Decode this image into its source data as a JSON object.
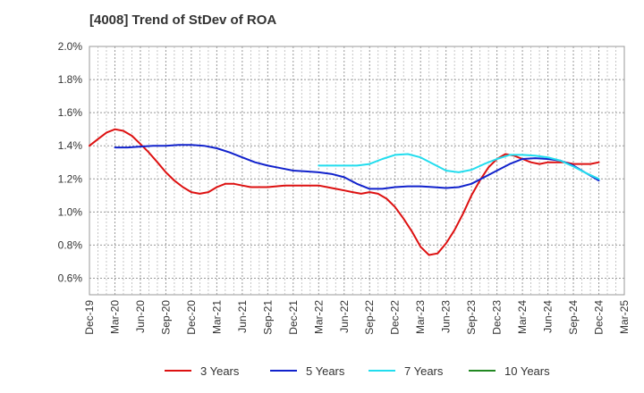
{
  "chart_data": {
    "type": "line",
    "title": "[4008]  Trend of StDev of ROA",
    "xlabel": "",
    "ylabel": "",
    "ylim": [
      0.5,
      2.0
    ],
    "y_ticks": [
      "0.6%",
      "0.8%",
      "1.0%",
      "1.2%",
      "1.4%",
      "1.6%",
      "1.8%",
      "2.0%"
    ],
    "y_tick_values": [
      0.6,
      0.8,
      1.0,
      1.2,
      1.4,
      1.6,
      1.8,
      2.0
    ],
    "categories": [
      "Dec-19",
      "Mar-20",
      "Jun-20",
      "Sep-20",
      "Dec-20",
      "Mar-21",
      "Jun-21",
      "Sep-21",
      "Dec-21",
      "Mar-22",
      "Jun-22",
      "Sep-22",
      "Dec-22",
      "Mar-23",
      "Jun-23",
      "Sep-23",
      "Dec-23",
      "Mar-24",
      "Jun-24",
      "Sep-24",
      "Dec-24",
      "Mar-25"
    ],
    "grid": true,
    "legend_position": "bottom",
    "series": [
      {
        "name": "3 Years",
        "color": "#dd1111",
        "x": [
          0,
          0.33,
          0.67,
          1,
          1.33,
          1.67,
          2,
          2.33,
          2.67,
          3,
          3.33,
          3.67,
          4,
          4.33,
          4.67,
          5,
          5.33,
          5.67,
          6,
          6.33,
          6.67,
          7,
          7.33,
          7.67,
          8,
          8.33,
          8.67,
          9,
          9.33,
          9.67,
          10,
          10.33,
          10.67,
          11,
          11.33,
          11.67,
          12,
          12.33,
          12.67,
          13,
          13.33,
          13.67,
          14,
          14.33,
          14.67,
          15,
          15.33,
          15.67,
          16,
          16.33,
          16.67,
          17,
          17.33,
          17.67,
          18,
          18.33,
          18.67,
          19,
          19.33,
          19.67,
          20
        ],
        "y": [
          1.4,
          1.44,
          1.48,
          1.5,
          1.49,
          1.46,
          1.41,
          1.36,
          1.3,
          1.24,
          1.19,
          1.15,
          1.12,
          1.11,
          1.12,
          1.15,
          1.17,
          1.17,
          1.16,
          1.15,
          1.15,
          1.15,
          1.155,
          1.16,
          1.16,
          1.16,
          1.16,
          1.16,
          1.15,
          1.14,
          1.13,
          1.12,
          1.11,
          1.12,
          1.11,
          1.08,
          1.03,
          0.96,
          0.88,
          0.79,
          0.74,
          0.75,
          0.81,
          0.89,
          0.99,
          1.1,
          1.19,
          1.27,
          1.32,
          1.35,
          1.34,
          1.32,
          1.3,
          1.29,
          1.3,
          1.3,
          1.3,
          1.29,
          1.29,
          1.29,
          1.3
        ]
      },
      {
        "name": "5 Years",
        "color": "#1122cc",
        "x": [
          1,
          1.5,
          2,
          2.5,
          3,
          3.5,
          4,
          4.5,
          5,
          5.5,
          6,
          6.5,
          7,
          7.5,
          8,
          8.5,
          9,
          9.5,
          10,
          10.5,
          11,
          11.5,
          12,
          12.5,
          13,
          13.5,
          14,
          14.5,
          15,
          15.5,
          16,
          16.5,
          17,
          17.5,
          18,
          18.5,
          19,
          19.5,
          20
        ],
        "y": [
          1.39,
          1.39,
          1.395,
          1.4,
          1.4,
          1.405,
          1.405,
          1.4,
          1.385,
          1.36,
          1.33,
          1.3,
          1.28,
          1.265,
          1.25,
          1.245,
          1.24,
          1.23,
          1.21,
          1.17,
          1.14,
          1.14,
          1.15,
          1.155,
          1.155,
          1.15,
          1.145,
          1.15,
          1.17,
          1.21,
          1.25,
          1.29,
          1.32,
          1.325,
          1.32,
          1.31,
          1.28,
          1.235,
          1.19
        ]
      },
      {
        "name": "7 Years",
        "color": "#22ddee",
        "x": [
          9,
          9.5,
          10,
          10.5,
          11,
          11.5,
          12,
          12.5,
          13,
          13.5,
          14,
          14.5,
          15,
          15.5,
          16,
          16.5,
          17,
          17.5,
          18,
          18.5,
          19,
          19.5,
          20
        ],
        "y": [
          1.28,
          1.28,
          1.28,
          1.28,
          1.29,
          1.32,
          1.345,
          1.35,
          1.33,
          1.29,
          1.25,
          1.24,
          1.255,
          1.29,
          1.32,
          1.345,
          1.345,
          1.34,
          1.33,
          1.31,
          1.275,
          1.235,
          1.2
        ]
      },
      {
        "name": "10 Years",
        "color": "#228822",
        "x": [],
        "y": []
      }
    ]
  }
}
